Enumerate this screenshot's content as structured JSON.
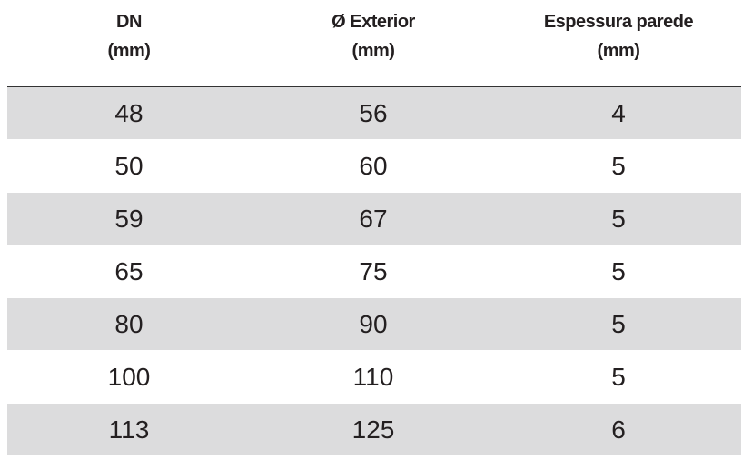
{
  "table": {
    "header": [
      [
        "DN",
        "(mm)"
      ],
      [
        "Ø Exterior",
        "(mm)"
      ],
      [
        "Espessura parede",
        "(mm)"
      ]
    ],
    "rows": [
      [
        48,
        56,
        4
      ],
      [
        50,
        60,
        5
      ],
      [
        59,
        67,
        5
      ],
      [
        65,
        75,
        5
      ],
      [
        80,
        90,
        5
      ],
      [
        100,
        110,
        5
      ],
      [
        113,
        125,
        6
      ]
    ]
  }
}
